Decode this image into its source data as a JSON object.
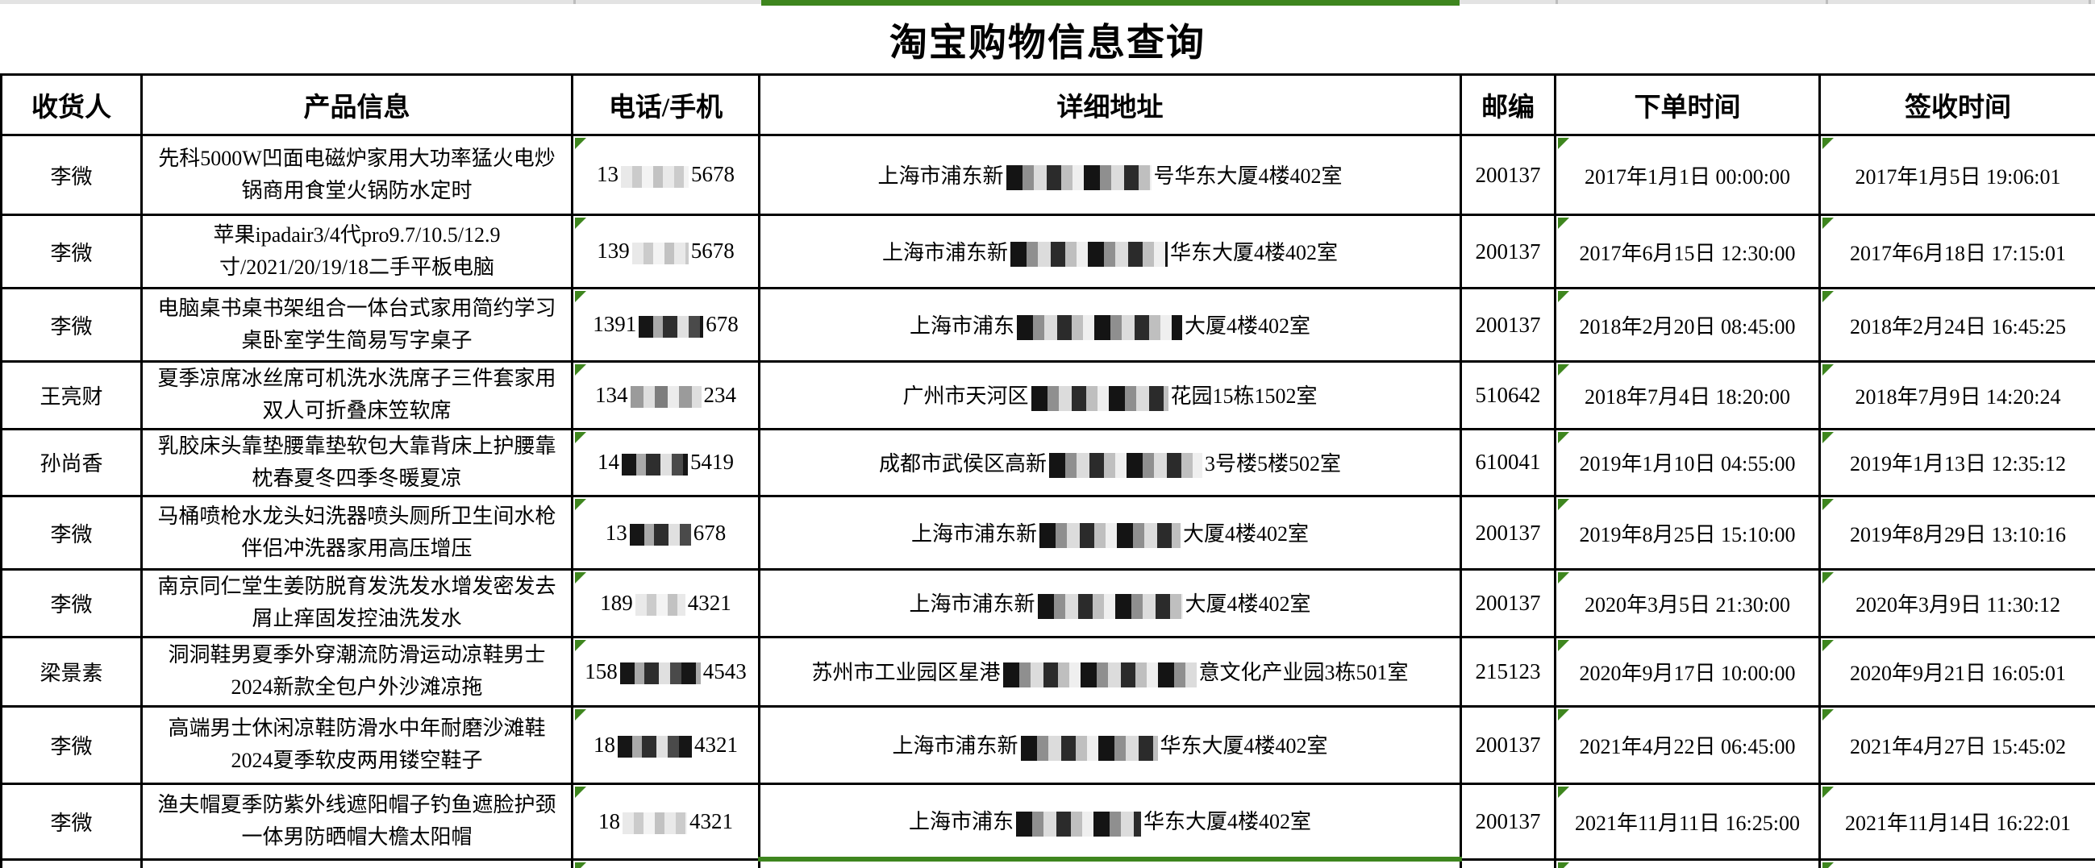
{
  "app": {
    "title": "淘宝购物信息查询"
  },
  "colors": {
    "selection_green": "#3e861e",
    "grid_line": "#000000",
    "top_strip_gray": "#e3e3e3"
  },
  "table": {
    "headers": [
      "收货人",
      "产品信息",
      "电话/手机",
      "详细地址",
      "邮编",
      "下单时间",
      "签收时间"
    ],
    "rows": [
      {
        "recipient": "李微",
        "product": "先科5000W凹面电磁炉家用大功率猛火电炒锅商用食堂火锅防水定时",
        "phone_prefix": "13",
        "phone_suffix": "5678",
        "phone_censor": "light",
        "phone_censor_w": 84,
        "addr_prefix": "上海市浦东新",
        "addr_suffix": "号华东大厦4楼402室",
        "addr_censor_w": 180,
        "postal": "200137",
        "order_time": "2017年1月1日 00:00:00",
        "receipt_time": "2017年1月5日 19:06:01",
        "height": 99
      },
      {
        "recipient": "李微",
        "product": "苹果ipadair3/4代pro9.7/10.5/12.9寸/2021/20/19/18二手平板电脑",
        "phone_prefix": "139",
        "phone_suffix": "5678",
        "phone_censor": "light",
        "phone_censor_w": 70,
        "addr_prefix": "上海市浦东新",
        "addr_suffix": "华东大厦4楼402室",
        "addr_censor_w": 195,
        "postal": "200137",
        "order_time": "2017年6月15日 12:30:00",
        "receipt_time": "2017年6月18日 17:15:01",
        "height": 91
      },
      {
        "recipient": "李微",
        "product": "电脑桌书桌书架组合一体台式家用简约学习桌卧室学生简易写字桌子",
        "phone_prefix": "1391",
        "phone_suffix": "678",
        "phone_censor": "dark",
        "phone_censor_w": 80,
        "addr_prefix": "上海市浦东",
        "addr_suffix": "大厦4楼402室",
        "addr_censor_w": 205,
        "postal": "200137",
        "order_time": "2018年2月20日 08:45:00",
        "receipt_time": "2018年2月24日 16:45:25",
        "height": 91
      },
      {
        "recipient": "王亮财",
        "product": "夏季凉席冰丝席可机洗水洗席子三件套家用双人可折叠床笠软席",
        "phone_prefix": "134",
        "phone_suffix": "234",
        "phone_censor": "medium",
        "phone_censor_w": 88,
        "addr_prefix": "广州市天河区",
        "addr_suffix": "花园15栋1502室",
        "addr_censor_w": 170,
        "postal": "510642",
        "order_time": "2018年7月4日 18:20:00",
        "receipt_time": "2018年7月9日 14:20:24",
        "height": 83
      },
      {
        "recipient": "孙尚香",
        "product": "乳胶床头靠垫腰靠垫软包大靠背床上护腰靠枕春夏冬四季冬暖夏凉",
        "phone_prefix": "14",
        "phone_suffix": "5419",
        "phone_censor": "dark",
        "phone_censor_w": 82,
        "addr_prefix": "成都市武侯区高新",
        "addr_suffix": "3号楼5楼502室",
        "addr_censor_w": 190,
        "postal": "610041",
        "order_time": "2019年1月10日 04:55:00",
        "receipt_time": "2019年1月13日 12:35:12",
        "height": 75
      },
      {
        "recipient": "李微",
        "product": "马桶喷枪水龙头妇洗器喷头厕所卫生间水枪伴侣冲洗器家用高压增压",
        "phone_prefix": "13",
        "phone_suffix": "678",
        "phone_censor": "dark",
        "phone_censor_w": 76,
        "addr_prefix": "上海市浦东新",
        "addr_suffix": "大厦4楼402室",
        "addr_censor_w": 175,
        "postal": "200137",
        "order_time": "2019年8月25日 15:10:00",
        "receipt_time": "2019年8月29日 13:10:16",
        "height": 91
      },
      {
        "recipient": "李微",
        "product": "南京同仁堂生姜防脱育发洗发水增发密发去屑止痒固发控油洗发水",
        "phone_prefix": "189",
        "phone_suffix": "4321",
        "phone_censor": "light",
        "phone_censor_w": 62,
        "addr_prefix": "上海市浦东新",
        "addr_suffix": "大厦4楼402室",
        "addr_censor_w": 180,
        "postal": "200137",
        "order_time": "2020年3月5日 21:30:00",
        "receipt_time": "2020年3月9日 11:30:12",
        "height": 80
      },
      {
        "recipient": "梁景素",
        "product": "洞洞鞋男夏季外穿潮流防滑运动凉鞋男士2024新款全包户外沙滩凉拖",
        "phone_prefix": "158",
        "phone_suffix": "4543",
        "phone_censor": "dark",
        "phone_censor_w": 100,
        "addr_prefix": "苏州市工业园区星港",
        "addr_suffix": "意文化产业园3栋501室",
        "addr_censor_w": 240,
        "postal": "215123",
        "order_time": "2020年9月17日 10:00:00",
        "receipt_time": "2020年9月21日 16:05:01",
        "height": 86
      },
      {
        "recipient": "李微",
        "product": "高端男士休闲凉鞋防滑水中年耐磨沙滩鞋2024夏季软皮两用镂空鞋子",
        "phone_prefix": "18",
        "phone_suffix": "4321",
        "phone_censor": "dark",
        "phone_censor_w": 92,
        "addr_prefix": "上海市浦东新",
        "addr_suffix": "华东大厦4楼402室",
        "addr_censor_w": 170,
        "postal": "200137",
        "order_time": "2021年4月22日 06:45:00",
        "receipt_time": "2021年4月27日 15:45:02",
        "height": 96
      },
      {
        "recipient": "李微",
        "product": "渔夫帽夏季防紫外线遮阳帽子钓鱼遮脸护颈一体男防晒帽大檐太阳帽",
        "phone_prefix": "18",
        "phone_suffix": "4321",
        "phone_censor": "light",
        "phone_censor_w": 80,
        "addr_prefix": "上海市浦东",
        "addr_suffix": "华东大厦4楼402室",
        "addr_censor_w": 155,
        "postal": "200137",
        "order_time": "2021年11月11日 16:25:00",
        "receipt_time": "2021年11月14日 16:22:01",
        "height": 94
      }
    ]
  }
}
